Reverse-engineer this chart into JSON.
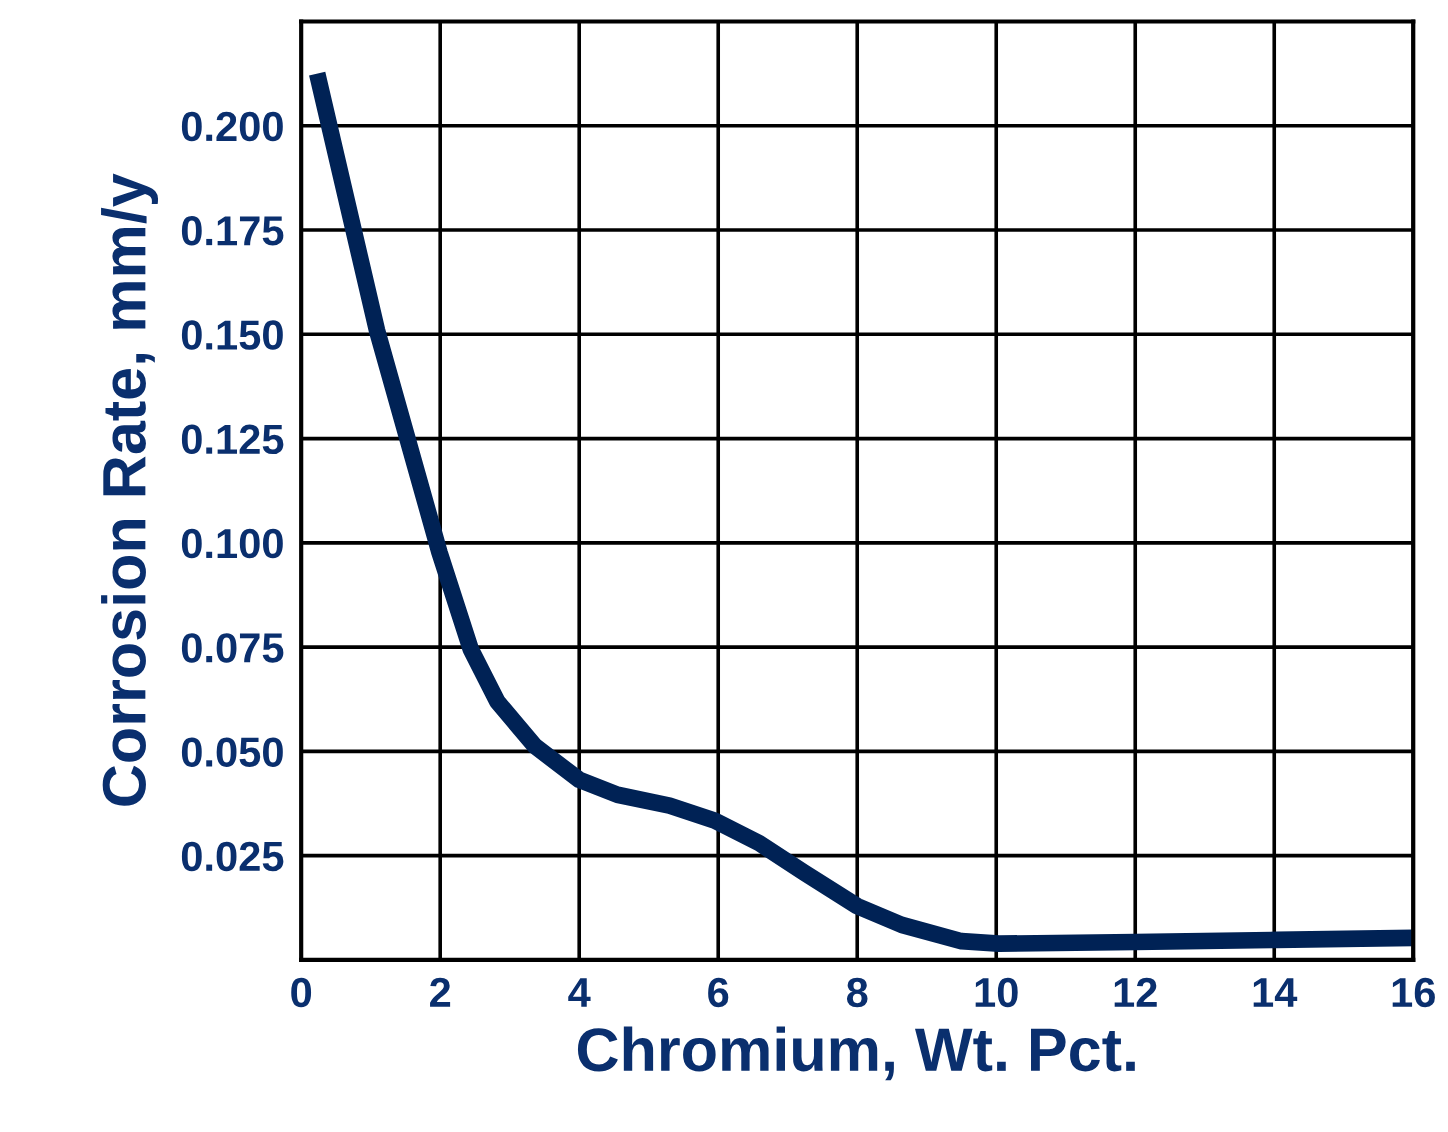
{
  "chart_data": {
    "type": "line",
    "xlabel": "Chromium, Wt. Pct.",
    "ylabel": "Corrosion Rate, mm/y",
    "x": [
      0.23,
      1.09,
      1.99,
      2.44,
      2.82,
      3.36,
      4.0,
      4.55,
      5.3,
      5.95,
      6.59,
      7.24,
      8.0,
      8.64,
      9.5,
      10.04,
      12.0,
      14.03,
      16.0
    ],
    "series": [
      {
        "color": "#002255",
        "values": [
          0.2125,
          0.151,
          0.0977,
          0.0745,
          0.062,
          0.0513,
          0.0432,
          0.0396,
          0.037,
          0.0334,
          0.028,
          0.0209,
          0.0129,
          0.0084,
          0.0045,
          0.0039,
          0.0043,
          0.0048,
          0.0053
        ]
      }
    ],
    "xlim": [
      0,
      16
    ],
    "xticks": [
      0,
      2,
      4,
      6,
      8,
      10,
      12,
      14,
      16
    ],
    "ylim": [
      0,
      0.225
    ],
    "yticks": [
      {
        "value": 0.025,
        "label": "0.025"
      },
      {
        "value": 0.05,
        "label": "0.050"
      },
      {
        "value": 0.075,
        "label": "0.075"
      },
      {
        "value": 0.1,
        "label": "0.100"
      },
      {
        "value": 0.125,
        "label": "0.125"
      },
      {
        "value": 0.15,
        "label": "0.150"
      },
      {
        "value": 0.175,
        "label": "0.175"
      },
      {
        "value": 0.2,
        "label": "0.200"
      }
    ],
    "grid": true,
    "marker": "none",
    "line_style": "solid"
  }
}
